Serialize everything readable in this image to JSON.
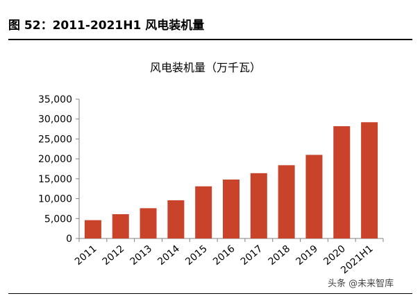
{
  "figure_title": "图 52：2011-2021H1 风电装机量",
  "watermark": "头条 @未来智库",
  "chart_data": {
    "type": "bar",
    "title": "风电装机量（万千瓦）",
    "categories": [
      "2011",
      "2012",
      "2013",
      "2014",
      "2015",
      "2016",
      "2017",
      "2018",
      "2019",
      "2020",
      "2021H1"
    ],
    "values": [
      4600,
      6100,
      7600,
      9600,
      13100,
      14800,
      16400,
      18400,
      21000,
      28200,
      29200
    ],
    "ylim": [
      0,
      35000
    ],
    "yticks": [
      0,
      5000,
      10000,
      15000,
      20000,
      25000,
      30000,
      35000
    ],
    "ytick_labels": [
      "0",
      "5,000",
      "10,000",
      "15,000",
      "20,000",
      "25,000",
      "30,000",
      "35,000"
    ],
    "bar_color": "#c8432a",
    "xlabel": "",
    "ylabel": ""
  }
}
